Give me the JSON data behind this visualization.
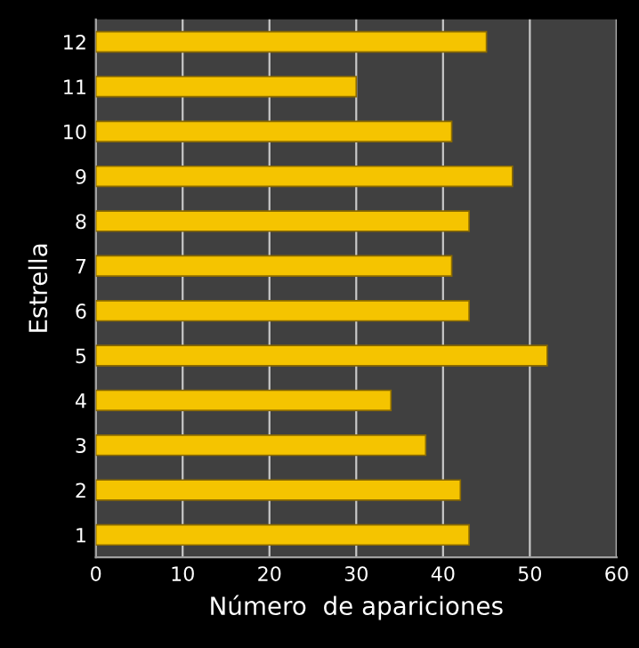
{
  "chart_data": {
    "type": "bar",
    "orientation": "horizontal",
    "categories": [
      "12",
      "11",
      "10",
      "9",
      "8",
      "7",
      "6",
      "5",
      "4",
      "3",
      "2",
      "1"
    ],
    "values": [
      45,
      30,
      41,
      48,
      43,
      41,
      43,
      52,
      34,
      38,
      42,
      43
    ],
    "color": "#f5c400",
    "xlabel": "Número  de apariciones",
    "ylabel": "Estrella",
    "xlim": [
      0,
      60
    ],
    "xticks": [
      0,
      10,
      20,
      30,
      40,
      50,
      60
    ],
    "grid": "x"
  }
}
